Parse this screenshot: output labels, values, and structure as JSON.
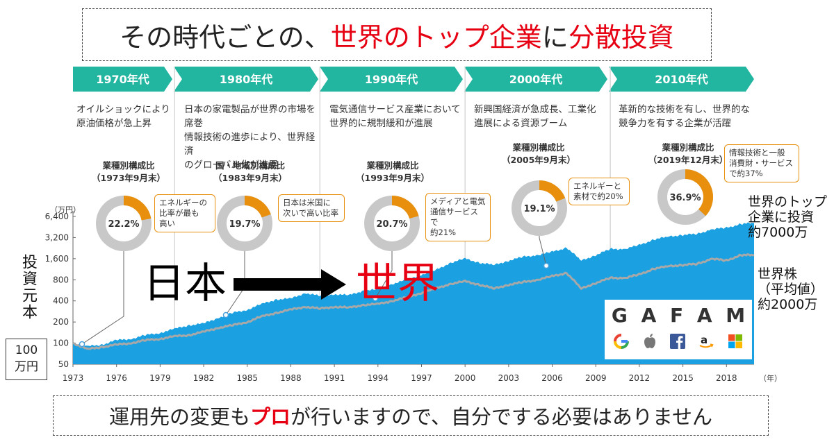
{
  "headline": {
    "part1": "その時代ごとの、",
    "part2": "世界のトップ企業",
    "part3": "に",
    "part4": "分散投資"
  },
  "footer": {
    "part1": "運用先の変更も",
    "part2": "プロ",
    "part3": "が行いますので、自分でする必要はありません"
  },
  "eras": [
    {
      "label": "1970年代",
      "desc": "オイルショックにより\n原油価格が急上昇"
    },
    {
      "label": "1980年代",
      "desc": "日本の家電製品が世界の市場を席巻\n情報技術の進歩により、世界経済\nのグローバル化が進展"
    },
    {
      "label": "1990年代",
      "desc": "電気通信サービス産業において\n世界的に規制緩和が進展"
    },
    {
      "label": "2000年代",
      "desc": "新興国経済が急成長、工業化\n進展による資源ブーム"
    },
    {
      "label": "2010年代",
      "desc": "革新的な技術を有し、世界的な\n競争力を有する企業が活躍"
    }
  ],
  "compositions": [
    {
      "title": "業種別構成比\n（1973年9月末）",
      "percent": 22.2,
      "percent_label": "22.2%",
      "note": "エネルギーの\n比率が最も\n高い"
    },
    {
      "title": "国・地域別構成比\n（1983年9月末）",
      "percent": 19.7,
      "percent_label": "19.7%",
      "note": "日本は米国に\n次いで高い比率"
    },
    {
      "title": "業種別構成比\n（1993年9月末）",
      "percent": 20.7,
      "percent_label": "20.7%",
      "note": "メディアと電気\n通信サービスで\n約21%"
    },
    {
      "title": "業種別構成比\n（2005年9月末）",
      "percent": 19.1,
      "percent_label": "19.1%",
      "note": "エネルギーと\n素材で約20%"
    },
    {
      "title": "業種別構成比\n（2019年12月末）",
      "percent": 36.9,
      "percent_label": "36.9%",
      "note": "情報技術と一般\n消費財・サービス\nで約37%"
    }
  ],
  "overlay": {
    "left_word": "日本",
    "right_word": "世界",
    "y_side_label": "投資元本",
    "principal_label": "100\n万円",
    "top_series_label": "世界のトップ\n企業に投資\n約7000万",
    "avg_series_label": "世界株\n（平均値）\n約2000万"
  },
  "gafam": {
    "letters": [
      "G",
      "A",
      "F",
      "A",
      "M"
    ],
    "icons": [
      "google-icon",
      "apple-icon",
      "facebook-icon",
      "amazon-icon",
      "microsoft-icon"
    ]
  },
  "colors": {
    "area": "#1ba1e2",
    "avg_line": "#a8a8a8",
    "ribbon": "#22b5a0",
    "donut_orange": "#e8900e",
    "donut_gray": "#c8c8c8",
    "accent_red": "#e60012"
  },
  "chart_data": {
    "type": "area",
    "y_unit_label": "（万円）",
    "x_unit_label": "（年）",
    "y_scale": "log",
    "ylim": [
      50,
      6400
    ],
    "y_ticks": [
      50,
      100,
      200,
      400,
      800,
      1600,
      3200,
      6400
    ],
    "y_tick_labels": [
      "50",
      "100",
      "200",
      "400",
      "800",
      "1,600",
      "3,200",
      "6,400"
    ],
    "x_ticks": [
      1973,
      1976,
      1979,
      1982,
      1985,
      1988,
      1991,
      1994,
      1997,
      2000,
      2003,
      2006,
      2009,
      2012,
      2015,
      2018
    ],
    "xlim": [
      1973,
      2019.9
    ],
    "era_boundaries": [
      1980,
      1990,
      2000,
      2010
    ],
    "series": [
      {
        "type": "area",
        "x": [
          1973,
          1974,
          1975,
          1976,
          1977,
          1978,
          1979,
          1980,
          1981,
          1982,
          1983,
          1984,
          1985,
          1986,
          1987,
          1988,
          1989,
          1990,
          1991,
          1992,
          1993,
          1994,
          1995,
          1996,
          1997,
          1998,
          1999,
          2000,
          2001,
          2002,
          2003,
          2004,
          2005,
          2006,
          2007,
          2008,
          2009,
          2010,
          2011,
          2012,
          2013,
          2014,
          2015,
          2016,
          2017,
          2018,
          2019,
          2019.9
        ],
        "values": [
          100,
          90,
          95,
          110,
          115,
          130,
          140,
          160,
          180,
          190,
          230,
          270,
          300,
          360,
          420,
          430,
          520,
          470,
          500,
          480,
          560,
          580,
          700,
          800,
          950,
          1100,
          1400,
          1600,
          1400,
          1300,
          1500,
          1700,
          1800,
          2000,
          2300,
          1500,
          1800,
          2200,
          2200,
          2500,
          3000,
          3300,
          3500,
          3600,
          4200,
          4400,
          5000,
          5200
        ]
      },
      {
        "type": "line",
        "x": [
          1973,
          1974,
          1975,
          1976,
          1977,
          1978,
          1979,
          1980,
          1981,
          1982,
          1983,
          1984,
          1985,
          1986,
          1987,
          1988,
          1989,
          1990,
          1991,
          1992,
          1993,
          1994,
          1995,
          1996,
          1997,
          1998,
          1999,
          2000,
          2001,
          2002,
          2003,
          2004,
          2005,
          2006,
          2007,
          2008,
          2009,
          2010,
          2011,
          2012,
          2013,
          2014,
          2015,
          2016,
          2017,
          2018,
          2019,
          2019.9
        ],
        "values": [
          100,
          82,
          88,
          95,
          100,
          110,
          115,
          125,
          130,
          145,
          165,
          180,
          200,
          240,
          270,
          300,
          330,
          310,
          330,
          320,
          350,
          360,
          400,
          450,
          520,
          600,
          700,
          760,
          680,
          600,
          680,
          740,
          800,
          900,
          1000,
          600,
          720,
          850,
          850,
          950,
          1150,
          1250,
          1300,
          1350,
          1600,
          1500,
          1800,
          1800
        ]
      }
    ]
  }
}
